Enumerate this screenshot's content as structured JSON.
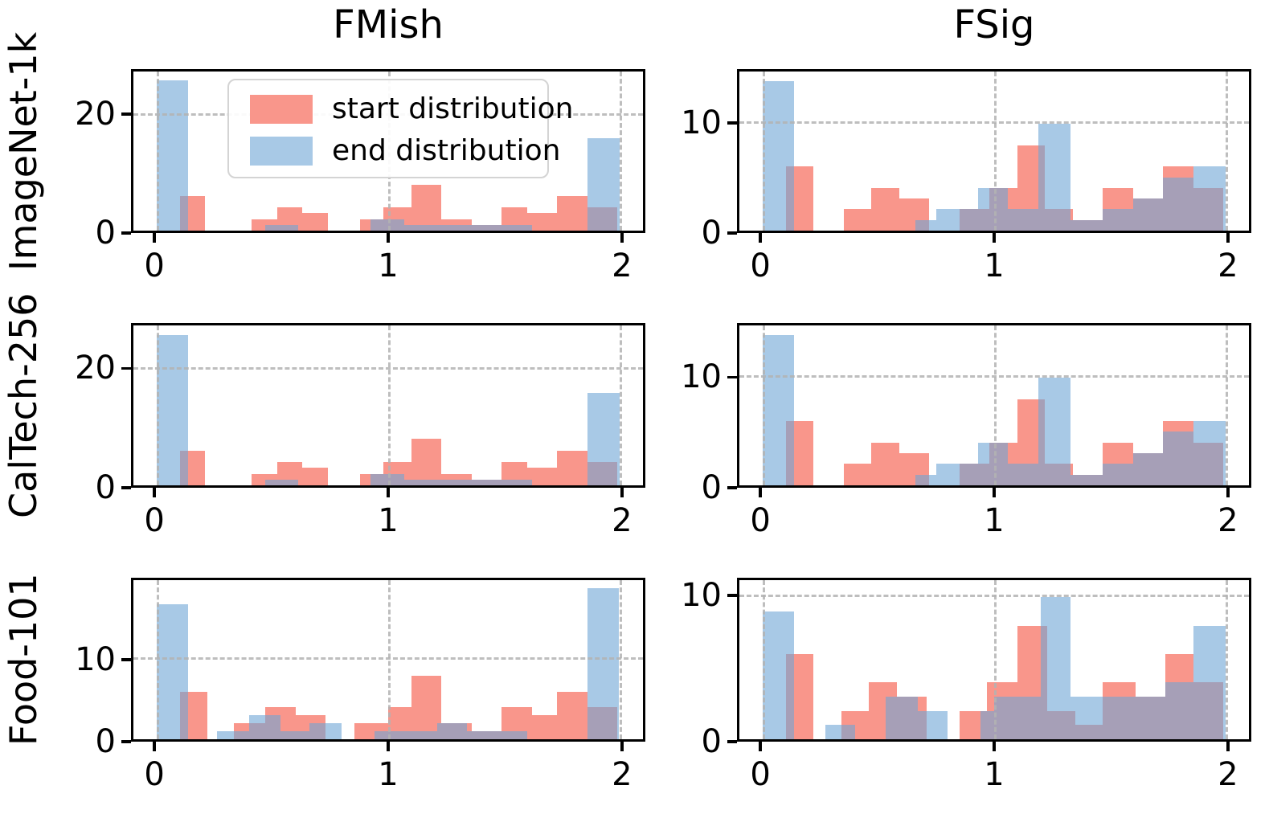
{
  "titles": {
    "col1": "FMish",
    "col2": "FSig"
  },
  "row_labels": [
    "ImageNet-1k",
    "CalTech-256",
    "Food-101"
  ],
  "legend": {
    "items": [
      {
        "label": "start distribution",
        "color": "#f9968b"
      },
      {
        "label": "end distribution",
        "color": "#a8c9e6"
      }
    ]
  },
  "colors": {
    "start_fill": "#f9968b",
    "end_fill": "rgba(110,165,213,0.6)",
    "grid": "#b3b3b3",
    "spine": "#000000"
  },
  "chart_data": [
    {
      "type": "bar",
      "row_label": "ImageNet-1k",
      "column": "FMish",
      "xlim": [
        -0.1,
        2.1
      ],
      "ylim": [
        0,
        27.6
      ],
      "xticks": [
        {
          "v": 0,
          "label": "0"
        },
        {
          "v": 1,
          "label": "1"
        },
        {
          "v": 2,
          "label": "2"
        }
      ],
      "yticks": [
        {
          "v": 0,
          "label": "0"
        },
        {
          "v": 20,
          "label": "20"
        }
      ],
      "grid_x": [
        0,
        1,
        2
      ],
      "grid_y": [
        20
      ],
      "series": [
        {
          "name": "start distribution",
          "key": "start",
          "color": "#f9968b",
          "bars": [
            {
              "x": 0.1,
              "w": 0.11,
              "h": 6
            },
            {
              "x": 0.41,
              "w": 0.11,
              "h": 2
            },
            {
              "x": 0.52,
              "w": 0.11,
              "h": 4
            },
            {
              "x": 0.63,
              "w": 0.11,
              "h": 3
            },
            {
              "x": 0.88,
              "w": 0.1,
              "h": 2
            },
            {
              "x": 0.98,
              "w": 0.12,
              "h": 4
            },
            {
              "x": 1.1,
              "w": 0.13,
              "h": 8
            },
            {
              "x": 1.23,
              "w": 0.13,
              "h": 2
            },
            {
              "x": 1.36,
              "w": 0.13,
              "h": 1
            },
            {
              "x": 1.49,
              "w": 0.11,
              "h": 4
            },
            {
              "x": 1.6,
              "w": 0.13,
              "h": 3
            },
            {
              "x": 1.73,
              "w": 0.13,
              "h": 6
            },
            {
              "x": 1.86,
              "w": 0.13,
              "h": 4
            }
          ]
        },
        {
          "name": "end distribution",
          "key": "end",
          "color": "rgba(110,165,213,0.6)",
          "bars": [
            {
              "x": 0.0,
              "w": 0.135,
              "h": 26
            },
            {
              "x": 0.47,
              "w": 0.14,
              "h": 1
            },
            {
              "x": 0.925,
              "w": 0.145,
              "h": 2
            },
            {
              "x": 1.07,
              "w": 0.55,
              "h": 1
            },
            {
              "x": 1.86,
              "w": 0.14,
              "h": 16
            }
          ]
        }
      ]
    },
    {
      "type": "bar",
      "row_label": "ImageNet-1k",
      "column": "FSig",
      "xlim": [
        -0.1,
        2.1
      ],
      "ylim": [
        0,
        14.9
      ],
      "xticks": [
        {
          "v": 0,
          "label": "0"
        },
        {
          "v": 1,
          "label": "1"
        },
        {
          "v": 2,
          "label": "2"
        }
      ],
      "yticks": [
        {
          "v": 0,
          "label": "0"
        },
        {
          "v": 10,
          "label": "10"
        }
      ],
      "grid_x": [
        0,
        1,
        2
      ],
      "grid_y": [
        10
      ],
      "series": [
        {
          "name": "start distribution",
          "key": "start",
          "color": "#f9968b",
          "bars": [
            {
              "x": 0.1,
              "w": 0.12,
              "h": 6
            },
            {
              "x": 0.35,
              "w": 0.12,
              "h": 2
            },
            {
              "x": 0.47,
              "w": 0.12,
              "h": 4
            },
            {
              "x": 0.59,
              "w": 0.13,
              "h": 3
            },
            {
              "x": 0.85,
              "w": 0.13,
              "h": 2
            },
            {
              "x": 0.98,
              "w": 0.12,
              "h": 4
            },
            {
              "x": 1.1,
              "w": 0.12,
              "h": 8
            },
            {
              "x": 1.22,
              "w": 0.12,
              "h": 2
            },
            {
              "x": 1.34,
              "w": 0.13,
              "h": 1
            },
            {
              "x": 1.47,
              "w": 0.13,
              "h": 4
            },
            {
              "x": 1.6,
              "w": 0.13,
              "h": 3
            },
            {
              "x": 1.73,
              "w": 0.13,
              "h": 6
            },
            {
              "x": 1.86,
              "w": 0.13,
              "h": 4
            }
          ]
        },
        {
          "name": "end distribution",
          "key": "end",
          "color": "rgba(110,165,213,0.6)",
          "bars": [
            {
              "x": 0.0,
              "w": 0.135,
              "h": 14
            },
            {
              "x": 0.66,
              "w": 0.09,
              "h": 1
            },
            {
              "x": 0.75,
              "w": 0.18,
              "h": 2
            },
            {
              "x": 0.93,
              "w": 0.13,
              "h": 4
            },
            {
              "x": 1.06,
              "w": 0.13,
              "h": 2
            },
            {
              "x": 1.19,
              "w": 0.14,
              "h": 10
            },
            {
              "x": 1.33,
              "w": 0.14,
              "h": 1
            },
            {
              "x": 1.47,
              "w": 0.13,
              "h": 2
            },
            {
              "x": 1.6,
              "w": 0.13,
              "h": 3
            },
            {
              "x": 1.73,
              "w": 0.13,
              "h": 5
            },
            {
              "x": 1.86,
              "w": 0.14,
              "h": 6
            }
          ]
        }
      ]
    },
    {
      "type": "bar",
      "row_label": "CalTech-256",
      "column": "FMish",
      "xlim": [
        -0.1,
        2.1
      ],
      "ylim": [
        0,
        27.6
      ],
      "xticks": [
        {
          "v": 0,
          "label": "0"
        },
        {
          "v": 1,
          "label": "1"
        },
        {
          "v": 2,
          "label": "2"
        }
      ],
      "yticks": [
        {
          "v": 0,
          "label": "0"
        },
        {
          "v": 20,
          "label": "20"
        }
      ],
      "grid_x": [
        0,
        1,
        2
      ],
      "grid_y": [
        20
      ],
      "series": [
        {
          "name": "start distribution",
          "key": "start",
          "color": "#f9968b",
          "bars": [
            {
              "x": 0.1,
              "w": 0.11,
              "h": 6
            },
            {
              "x": 0.41,
              "w": 0.11,
              "h": 2
            },
            {
              "x": 0.52,
              "w": 0.11,
              "h": 4
            },
            {
              "x": 0.63,
              "w": 0.11,
              "h": 3
            },
            {
              "x": 0.88,
              "w": 0.1,
              "h": 2
            },
            {
              "x": 0.98,
              "w": 0.12,
              "h": 4
            },
            {
              "x": 1.1,
              "w": 0.13,
              "h": 8
            },
            {
              "x": 1.23,
              "w": 0.13,
              "h": 2
            },
            {
              "x": 1.36,
              "w": 0.13,
              "h": 1
            },
            {
              "x": 1.49,
              "w": 0.11,
              "h": 4
            },
            {
              "x": 1.6,
              "w": 0.13,
              "h": 3
            },
            {
              "x": 1.73,
              "w": 0.13,
              "h": 6
            },
            {
              "x": 1.86,
              "w": 0.13,
              "h": 4
            }
          ]
        },
        {
          "name": "end distribution",
          "key": "end",
          "color": "rgba(110,165,213,0.6)",
          "bars": [
            {
              "x": 0.0,
              "w": 0.135,
              "h": 26
            },
            {
              "x": 0.47,
              "w": 0.14,
              "h": 1
            },
            {
              "x": 0.925,
              "w": 0.145,
              "h": 2
            },
            {
              "x": 1.07,
              "w": 0.55,
              "h": 1
            },
            {
              "x": 1.86,
              "w": 0.14,
              "h": 16
            }
          ]
        }
      ]
    },
    {
      "type": "bar",
      "row_label": "CalTech-256",
      "column": "FSig",
      "xlim": [
        -0.1,
        2.1
      ],
      "ylim": [
        0,
        14.9
      ],
      "xticks": [
        {
          "v": 0,
          "label": "0"
        },
        {
          "v": 1,
          "label": "1"
        },
        {
          "v": 2,
          "label": "2"
        }
      ],
      "yticks": [
        {
          "v": 0,
          "label": "0"
        },
        {
          "v": 10,
          "label": "10"
        }
      ],
      "grid_x": [
        0,
        1,
        2
      ],
      "grid_y": [
        10
      ],
      "series": [
        {
          "name": "start distribution",
          "key": "start",
          "color": "#f9968b",
          "bars": [
            {
              "x": 0.1,
              "w": 0.12,
              "h": 6
            },
            {
              "x": 0.35,
              "w": 0.12,
              "h": 2
            },
            {
              "x": 0.47,
              "w": 0.12,
              "h": 4
            },
            {
              "x": 0.59,
              "w": 0.13,
              "h": 3
            },
            {
              "x": 0.85,
              "w": 0.13,
              "h": 2
            },
            {
              "x": 0.98,
              "w": 0.12,
              "h": 4
            },
            {
              "x": 1.1,
              "w": 0.12,
              "h": 8
            },
            {
              "x": 1.22,
              "w": 0.12,
              "h": 2
            },
            {
              "x": 1.34,
              "w": 0.13,
              "h": 1
            },
            {
              "x": 1.47,
              "w": 0.13,
              "h": 4
            },
            {
              "x": 1.6,
              "w": 0.13,
              "h": 3
            },
            {
              "x": 1.73,
              "w": 0.13,
              "h": 6
            },
            {
              "x": 1.86,
              "w": 0.13,
              "h": 4
            }
          ]
        },
        {
          "name": "end distribution",
          "key": "end",
          "color": "rgba(110,165,213,0.6)",
          "bars": [
            {
              "x": 0.0,
              "w": 0.135,
              "h": 14
            },
            {
              "x": 0.66,
              "w": 0.09,
              "h": 1
            },
            {
              "x": 0.75,
              "w": 0.18,
              "h": 2
            },
            {
              "x": 0.93,
              "w": 0.13,
              "h": 4
            },
            {
              "x": 1.06,
              "w": 0.13,
              "h": 2
            },
            {
              "x": 1.19,
              "w": 0.14,
              "h": 10
            },
            {
              "x": 1.33,
              "w": 0.14,
              "h": 1
            },
            {
              "x": 1.47,
              "w": 0.13,
              "h": 2
            },
            {
              "x": 1.6,
              "w": 0.13,
              "h": 3
            },
            {
              "x": 1.73,
              "w": 0.13,
              "h": 5
            },
            {
              "x": 1.86,
              "w": 0.14,
              "h": 6
            }
          ]
        }
      ]
    },
    {
      "type": "bar",
      "row_label": "Food-101",
      "column": "FMish",
      "xlim": [
        -0.1,
        2.1
      ],
      "ylim": [
        0,
        20
      ],
      "xticks": [
        {
          "v": 0,
          "label": "0"
        },
        {
          "v": 1,
          "label": "1"
        },
        {
          "v": 2,
          "label": "2"
        }
      ],
      "yticks": [
        {
          "v": 0,
          "label": "0"
        },
        {
          "v": 10,
          "label": "10"
        }
      ],
      "grid_x": [
        0,
        1,
        2
      ],
      "grid_y": [
        10
      ],
      "series": [
        {
          "name": "start distribution",
          "key": "start",
          "color": "#f9968b",
          "bars": [
            {
              "x": 0.1,
              "w": 0.12,
              "h": 6
            },
            {
              "x": 0.335,
              "w": 0.135,
              "h": 2
            },
            {
              "x": 0.47,
              "w": 0.13,
              "h": 4
            },
            {
              "x": 0.6,
              "w": 0.13,
              "h": 3
            },
            {
              "x": 0.855,
              "w": 0.145,
              "h": 2
            },
            {
              "x": 1.0,
              "w": 0.1,
              "h": 4
            },
            {
              "x": 1.1,
              "w": 0.13,
              "h": 8
            },
            {
              "x": 1.23,
              "w": 0.13,
              "h": 2
            },
            {
              "x": 1.36,
              "w": 0.13,
              "h": 1
            },
            {
              "x": 1.49,
              "w": 0.13,
              "h": 4
            },
            {
              "x": 1.62,
              "w": 0.11,
              "h": 3
            },
            {
              "x": 1.73,
              "w": 0.13,
              "h": 6
            },
            {
              "x": 1.86,
              "w": 0.13,
              "h": 4
            }
          ]
        },
        {
          "name": "end distribution",
          "key": "end",
          "color": "rgba(110,165,213,0.6)",
          "bars": [
            {
              "x": 0.0,
              "w": 0.135,
              "h": 17
            },
            {
              "x": 0.26,
              "w": 0.14,
              "h": 1
            },
            {
              "x": 0.4,
              "w": 0.135,
              "h": 3
            },
            {
              "x": 0.535,
              "w": 0.125,
              "h": 1
            },
            {
              "x": 0.66,
              "w": 0.14,
              "h": 2
            },
            {
              "x": 0.94,
              "w": 0.27,
              "h": 1
            },
            {
              "x": 1.21,
              "w": 0.13,
              "h": 2
            },
            {
              "x": 1.34,
              "w": 0.26,
              "h": 1
            },
            {
              "x": 1.86,
              "w": 0.135,
              "h": 19
            }
          ]
        }
      ]
    },
    {
      "type": "bar",
      "row_label": "Food-101",
      "column": "FSig",
      "xlim": [
        -0.1,
        2.1
      ],
      "ylim": [
        0,
        11.2
      ],
      "xticks": [
        {
          "v": 0,
          "label": "0"
        },
        {
          "v": 1,
          "label": "1"
        },
        {
          "v": 2,
          "label": "2"
        }
      ],
      "yticks": [
        {
          "v": 0,
          "label": "0"
        },
        {
          "v": 10,
          "label": "10"
        }
      ],
      "grid_x": [
        0,
        1,
        2
      ],
      "grid_y": [
        10
      ],
      "series": [
        {
          "name": "start distribution",
          "key": "start",
          "color": "#f9968b",
          "bars": [
            {
              "x": 0.1,
              "w": 0.12,
              "h": 6
            },
            {
              "x": 0.34,
              "w": 0.12,
              "h": 2
            },
            {
              "x": 0.46,
              "w": 0.12,
              "h": 4
            },
            {
              "x": 0.58,
              "w": 0.13,
              "h": 3
            },
            {
              "x": 0.85,
              "w": 0.12,
              "h": 2
            },
            {
              "x": 0.97,
              "w": 0.13,
              "h": 4
            },
            {
              "x": 1.1,
              "w": 0.13,
              "h": 8
            },
            {
              "x": 1.23,
              "w": 0.12,
              "h": 2
            },
            {
              "x": 1.35,
              "w": 0.12,
              "h": 1
            },
            {
              "x": 1.47,
              "w": 0.14,
              "h": 4
            },
            {
              "x": 1.61,
              "w": 0.13,
              "h": 3
            },
            {
              "x": 1.74,
              "w": 0.12,
              "h": 6
            },
            {
              "x": 1.86,
              "w": 0.13,
              "h": 4
            }
          ]
        },
        {
          "name": "end distribution",
          "key": "end",
          "color": "rgba(110,165,213,0.6)",
          "bars": [
            {
              "x": 0.0,
              "w": 0.135,
              "h": 9
            },
            {
              "x": 0.27,
              "w": 0.13,
              "h": 1
            },
            {
              "x": 0.53,
              "w": 0.14,
              "h": 3
            },
            {
              "x": 0.67,
              "w": 0.13,
              "h": 2
            },
            {
              "x": 0.94,
              "w": 0.06,
              "h": 2
            },
            {
              "x": 1.0,
              "w": 0.2,
              "h": 3
            },
            {
              "x": 1.2,
              "w": 0.13,
              "h": 10
            },
            {
              "x": 1.33,
              "w": 0.14,
              "h": 3
            },
            {
              "x": 1.47,
              "w": 0.14,
              "h": 3
            },
            {
              "x": 1.61,
              "w": 0.13,
              "h": 3
            },
            {
              "x": 1.74,
              "w": 0.12,
              "h": 4
            },
            {
              "x": 1.86,
              "w": 0.14,
              "h": 8
            }
          ]
        }
      ]
    }
  ]
}
